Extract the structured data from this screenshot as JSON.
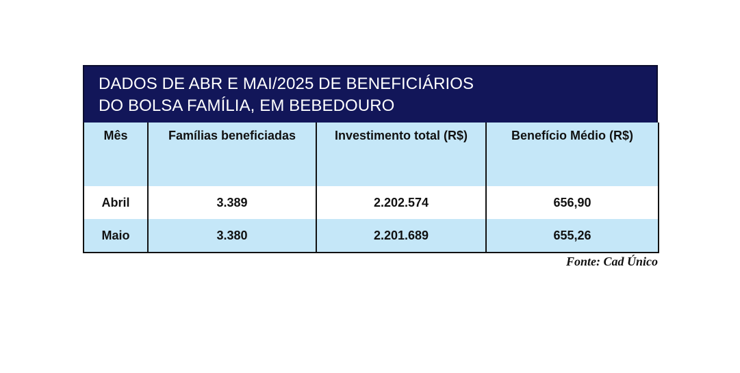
{
  "title": {
    "line1": "DADOS DE ABR E MAI/2025 DE BENEFICIÁRIOS",
    "line2": "DO BOLSA FAMÍLIA, EM BEBEDOURO"
  },
  "table": {
    "headers": [
      "Mês",
      "Famílias beneficiadas",
      "Investimento total (R$)",
      "Benefício Médio (R$)"
    ],
    "rows": [
      [
        "Abril",
        "3.389",
        "2.202.574",
        "656,90"
      ],
      [
        "Maio",
        "3.380",
        "2.201.689",
        "655,26"
      ]
    ]
  },
  "colors": {
    "title_background": "#121659",
    "header_background": "#c5e7f8",
    "alt_row_background": "#c5e7f8",
    "border": "#111111"
  },
  "source": "Fonte: Cad Único"
}
